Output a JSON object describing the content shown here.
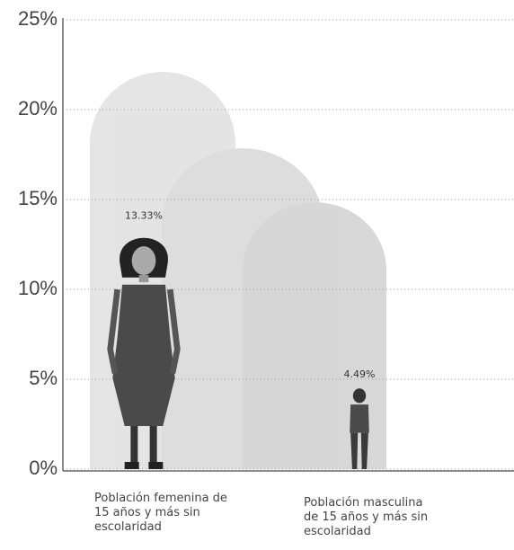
{
  "chart_data": {
    "type": "pictograph",
    "categories": [
      "Población femenina de 15 años y más sin escolaridad",
      "Población masculina de 15 años y más sin escolaridad"
    ],
    "values": [
      13.33,
      4.49
    ],
    "value_labels": [
      "13.33%",
      "4.49%"
    ],
    "ylim": [
      0,
      25
    ],
    "yticks": [
      {
        "value": 0,
        "label": "0%"
      },
      {
        "value": 5,
        "label": "5%"
      },
      {
        "value": 10,
        "label": "10%"
      },
      {
        "value": 15,
        "label": "15%"
      },
      {
        "value": 20,
        "label": "20%"
      },
      {
        "value": 25,
        "label": "25%"
      }
    ],
    "grid": true,
    "color": "#4a4a4a"
  }
}
